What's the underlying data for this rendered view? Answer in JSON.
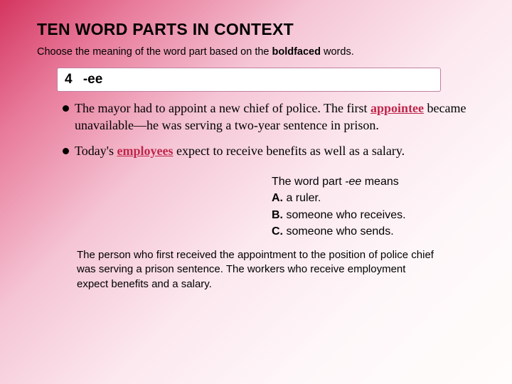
{
  "title": "TEN WORD PARTS IN CONTEXT",
  "instruction_pre": "Choose the meaning of the word part based on the ",
  "instruction_bold": "boldfaced",
  "instruction_post": " words.",
  "box": {
    "num": "4",
    "wordpart": "-ee"
  },
  "bullet1": {
    "pre": "The mayor had to appoint a new chief of police. The first ",
    "key": "appointee",
    "post": " became unavailable—he was serving a two-year sentence in prison."
  },
  "bullet2": {
    "pre": "Today's ",
    "key": "employees",
    "post": " expect to receive benefits as well as a salary."
  },
  "answers": {
    "lead_pre": "The word part ",
    "lead_ital": "-ee",
    "lead_post": " means",
    "A_label": "A.",
    "A_text": " a ruler.",
    "B_label": "B.",
    "B_text": " someone who receives.",
    "C_label": "C.",
    "C_text": " someone who sends."
  },
  "explain": "The person who first received the appointment to the position of police chief was serving a prison sentence. The workers who receive employment expect benefits and a salary."
}
